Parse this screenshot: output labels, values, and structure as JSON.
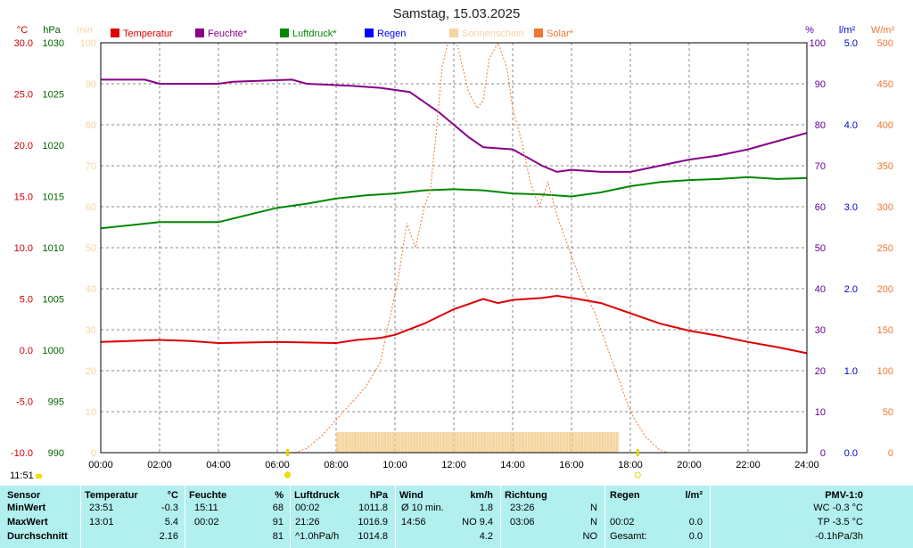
{
  "chart_data": {
    "type": "line",
    "title": "Samstag, 15.03.2025",
    "current_time": "11:51",
    "xlim": [
      "00:00",
      "24:00"
    ],
    "x_ticks": [
      "00:00",
      "02:00",
      "04:00",
      "06:00",
      "08:00",
      "10:00",
      "12:00",
      "14:00",
      "16:00",
      "18:00",
      "20:00",
      "22:00",
      "24:00"
    ],
    "axes": {
      "temp": {
        "unit": "°C",
        "min": -10,
        "max": 30,
        "ticks": [
          "-10.0",
          "-5.0",
          "0.0",
          "5.0",
          "10.0",
          "15.0",
          "20.0",
          "25.0",
          "30.0"
        ],
        "color": "#cc0000"
      },
      "pressure": {
        "unit": "hPa",
        "min": 990,
        "max": 1030,
        "ticks": [
          "990",
          "995",
          "1000",
          "1005",
          "1010",
          "1015",
          "1020",
          "1025",
          "1030"
        ],
        "color": "#006600"
      },
      "sunshine": {
        "unit": "min",
        "min": 0,
        "max": 100,
        "ticks": [
          "0",
          "10",
          "20",
          "30",
          "40",
          "50",
          "60",
          "70",
          "80",
          "90",
          "100"
        ],
        "color": "#f5d5a0"
      },
      "humidity": {
        "unit": "%",
        "min": 0,
        "max": 100,
        "ticks": [
          "0",
          "10",
          "20",
          "30",
          "40",
          "50",
          "60",
          "70",
          "80",
          "90",
          "100"
        ],
        "color": "#660099"
      },
      "rain": {
        "unit": "l/m²",
        "min": 0,
        "max": 5,
        "ticks": [
          "0.0",
          "1.0",
          "2.0",
          "3.0",
          "4.0",
          "5.0"
        ],
        "color": "#0000cc"
      },
      "solar": {
        "unit": "W/m²",
        "min": 0,
        "max": 500,
        "ticks": [
          "0",
          "50",
          "100",
          "150",
          "200",
          "250",
          "300",
          "350",
          "400",
          "450",
          "500"
        ],
        "color": "#ee7733"
      }
    },
    "legend": [
      {
        "name": "Temperatur",
        "color": "#dd0000"
      },
      {
        "name": "Feuchte*",
        "color": "#880088"
      },
      {
        "name": "Luftdruck*",
        "color": "#008800"
      },
      {
        "name": "Regen",
        "color": "#0000ff"
      },
      {
        "name": "Sonnenschein",
        "color": "#f5d5a0"
      },
      {
        "name": "Solar*",
        "color": "#ee7733"
      }
    ],
    "series": [
      {
        "name": "Temperatur",
        "axis": "temp",
        "color": "#dd0000",
        "points": [
          [
            0,
            0.8
          ],
          [
            2,
            1.0
          ],
          [
            3,
            0.9
          ],
          [
            4,
            0.7
          ],
          [
            6,
            0.8
          ],
          [
            8,
            0.7
          ],
          [
            8.7,
            1.0
          ],
          [
            9.5,
            1.2
          ],
          [
            10,
            1.5
          ],
          [
            11,
            2.6
          ],
          [
            12,
            4.0
          ],
          [
            13,
            5.0
          ],
          [
            13.5,
            4.6
          ],
          [
            14,
            4.9
          ],
          [
            15,
            5.1
          ],
          [
            15.5,
            5.3
          ],
          [
            16,
            5.1
          ],
          [
            17,
            4.6
          ],
          [
            18,
            3.6
          ],
          [
            19,
            2.6
          ],
          [
            20,
            1.9
          ],
          [
            21,
            1.4
          ],
          [
            22,
            0.8
          ],
          [
            23,
            0.3
          ],
          [
            24,
            -0.3
          ]
        ]
      },
      {
        "name": "Feuchte*",
        "axis": "humidity",
        "color": "#880088",
        "points": [
          [
            0,
            91
          ],
          [
            1.5,
            91
          ],
          [
            2,
            90
          ],
          [
            4,
            90
          ],
          [
            4.5,
            90.5
          ],
          [
            6.5,
            91
          ],
          [
            7,
            90
          ],
          [
            8.5,
            89.5
          ],
          [
            9.5,
            89
          ],
          [
            10.5,
            88
          ],
          [
            11.5,
            83
          ],
          [
            12.5,
            77
          ],
          [
            13,
            74.5
          ],
          [
            14,
            74
          ],
          [
            14.5,
            72
          ],
          [
            15,
            70
          ],
          [
            15.5,
            68.5
          ],
          [
            16,
            69
          ],
          [
            17,
            68.5
          ],
          [
            18,
            68.5
          ],
          [
            19,
            70
          ],
          [
            20,
            71.5
          ],
          [
            21,
            72.5
          ],
          [
            22,
            74
          ],
          [
            23,
            76
          ],
          [
            24,
            78
          ]
        ]
      },
      {
        "name": "Luftdruck*",
        "axis": "pressure",
        "color": "#008800",
        "points": [
          [
            0,
            1011.9
          ],
          [
            1,
            1012.2
          ],
          [
            2,
            1012.5
          ],
          [
            4,
            1012.5
          ],
          [
            5,
            1013.2
          ],
          [
            6,
            1013.9
          ],
          [
            7,
            1014.3
          ],
          [
            8,
            1014.8
          ],
          [
            9,
            1015.1
          ],
          [
            10,
            1015.3
          ],
          [
            11,
            1015.6
          ],
          [
            12,
            1015.7
          ],
          [
            13,
            1015.6
          ],
          [
            14,
            1015.3
          ],
          [
            15,
            1015.2
          ],
          [
            16,
            1015.0
          ],
          [
            17,
            1015.4
          ],
          [
            18,
            1016.0
          ],
          [
            19,
            1016.4
          ],
          [
            20,
            1016.6
          ],
          [
            21,
            1016.7
          ],
          [
            22,
            1016.9
          ],
          [
            23,
            1016.7
          ],
          [
            24,
            1016.8
          ]
        ]
      },
      {
        "name": "Solar*",
        "axis": "solar",
        "color": "#ee7733",
        "points": [
          [
            6.6,
            0
          ],
          [
            7,
            5
          ],
          [
            7.5,
            20
          ],
          [
            8,
            40
          ],
          [
            8.5,
            60
          ],
          [
            9,
            80
          ],
          [
            9.5,
            110
          ],
          [
            9.8,
            160
          ],
          [
            10.1,
            210
          ],
          [
            10.4,
            280
          ],
          [
            10.7,
            250
          ],
          [
            11,
            300
          ],
          [
            11.2,
            320
          ],
          [
            11.4,
            390
          ],
          [
            11.6,
            470
          ],
          [
            11.8,
            500
          ],
          [
            12.1,
            500
          ],
          [
            12.3,
            470
          ],
          [
            12.5,
            440
          ],
          [
            12.8,
            420
          ],
          [
            13,
            430
          ],
          [
            13.2,
            480
          ],
          [
            13.5,
            500
          ],
          [
            13.8,
            470
          ],
          [
            14,
            420
          ],
          [
            14.3,
            380
          ],
          [
            14.6,
            330
          ],
          [
            14.9,
            300
          ],
          [
            15.2,
            330
          ],
          [
            15.5,
            290
          ],
          [
            15.8,
            260
          ],
          [
            16.1,
            230
          ],
          [
            16.4,
            200
          ],
          [
            16.8,
            170
          ],
          [
            17.2,
            130
          ],
          [
            17.6,
            90
          ],
          [
            18,
            50
          ],
          [
            18.5,
            20
          ],
          [
            19,
            3
          ],
          [
            19.3,
            0
          ]
        ]
      },
      {
        "name": "Sonnenschein",
        "axis": "sunshine",
        "color": "#f5d5a0",
        "bars": {
          "from": 8.05,
          "to": 17.55,
          "step": 0.1,
          "value": 5
        }
      }
    ]
  },
  "table": {
    "header": {
      "sensor": "Sensor",
      "temp": "Temperatur",
      "temp_unit": "°C",
      "hum": "Feuchte",
      "hum_unit": "%",
      "press": "Luftdruck",
      "press_unit": "hPa",
      "wind": "Wind",
      "wind_unit": "km/h",
      "dir": "Richtung",
      "rain": "Regen",
      "rain_unit": "l/m²",
      "pmv": "PMV-1:0"
    },
    "rows": [
      {
        "label": "MinWert",
        "temp_time": "23:51",
        "temp": "-0.3",
        "hum_time": "15:11",
        "hum": "68",
        "press_time": "00:02",
        "press": "1011.8",
        "wind_label": "Ø 10 min.",
        "wind": "1.8",
        "dir_time": "23:26",
        "dir": "N",
        "rain_time": "",
        "rain": "",
        "pmv": "WC -0.3 °C"
      },
      {
        "label": "MaxWert",
        "temp_time": "13:01",
        "temp": "5.4",
        "hum_time": "00:02",
        "hum": "91",
        "press_time": "21:26",
        "press": "1016.9",
        "wind_label": "14:56",
        "wind": "NO 9.4",
        "dir_time": "03:06",
        "dir": "N",
        "rain_time": "00:02",
        "rain": "0.0",
        "pmv": "TP -3.5 °C"
      },
      {
        "label": "Durchschnitt",
        "temp_time": "",
        "temp": "2.16",
        "hum_time": "",
        "hum": "81",
        "press_time": "^1.0hPa/h",
        "press": "1014.8",
        "wind_label": "",
        "wind": "4.2",
        "dir_time": "",
        "dir": "NO",
        "rain_time": "Gesamt:",
        "rain": "0.0",
        "pmv": "-0.1hPa/3h"
      }
    ]
  }
}
